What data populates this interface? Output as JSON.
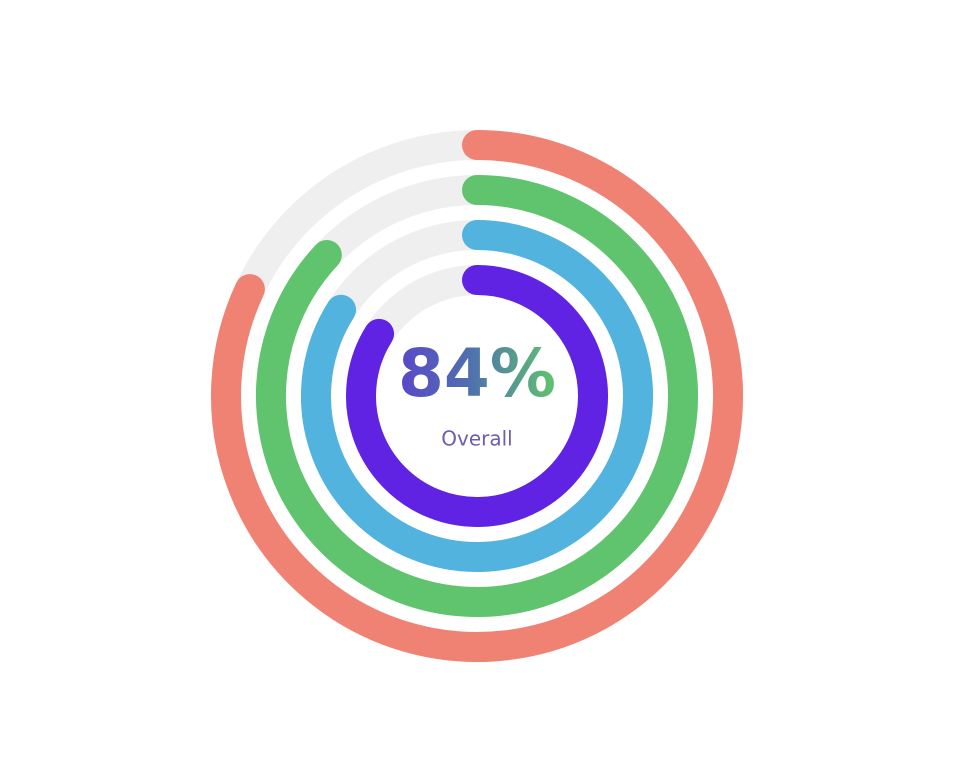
{
  "chart_data": {
    "type": "radialBar",
    "values": [
      82,
      87,
      84,
      84
    ],
    "colors": [
      "#f08274",
      "#5fc46d",
      "#52b3df",
      "#6023e3"
    ],
    "track_color": "#efefef",
    "ylim": [
      0,
      100
    ],
    "total_label": "84%",
    "total_name": "Overall"
  }
}
